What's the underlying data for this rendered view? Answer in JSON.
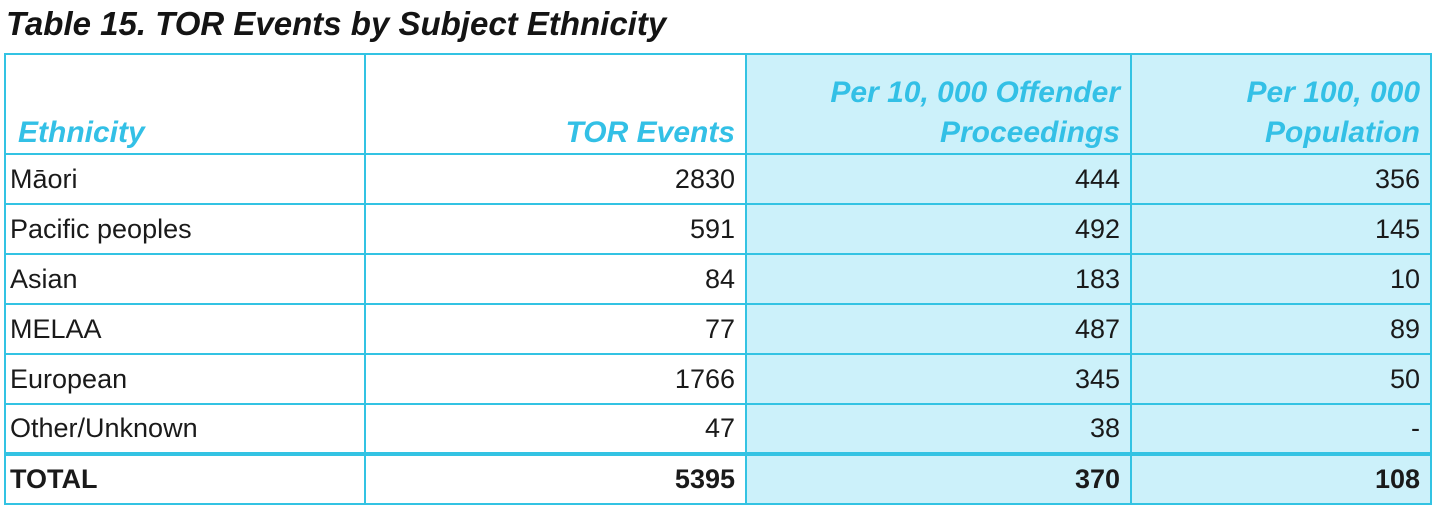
{
  "title": "Table 15. TOR Events by Subject Ethnicity",
  "columns": [
    "Ethnicity",
    "TOR Events",
    "Per 10, 000 Offender Proceedings",
    "Per 100, 000 Population"
  ],
  "rows": [
    {
      "ethnicity": "Māori",
      "tor_events": "2830",
      "per_10000": "444",
      "per_100000": "356"
    },
    {
      "ethnicity": "Pacific peoples",
      "tor_events": "591",
      "per_10000": "492",
      "per_100000": "145"
    },
    {
      "ethnicity": "Asian",
      "tor_events": "84",
      "per_10000": "183",
      "per_100000": "10"
    },
    {
      "ethnicity": "MELAA",
      "tor_events": "77",
      "per_10000": "487",
      "per_100000": "89"
    },
    {
      "ethnicity": "European",
      "tor_events": "1766",
      "per_10000": "345",
      "per_100000": "50"
    },
    {
      "ethnicity": "Other/Unknown",
      "tor_events": "47",
      "per_10000": "38",
      "per_100000": "-"
    }
  ],
  "total": {
    "ethnicity": "TOTAL",
    "tor_events": "5395",
    "per_10000": "370",
    "per_100000": "108"
  },
  "colors": {
    "accent": "#33c3e3",
    "header_text": "#33c0e6",
    "shade": "#ccf1fa"
  }
}
